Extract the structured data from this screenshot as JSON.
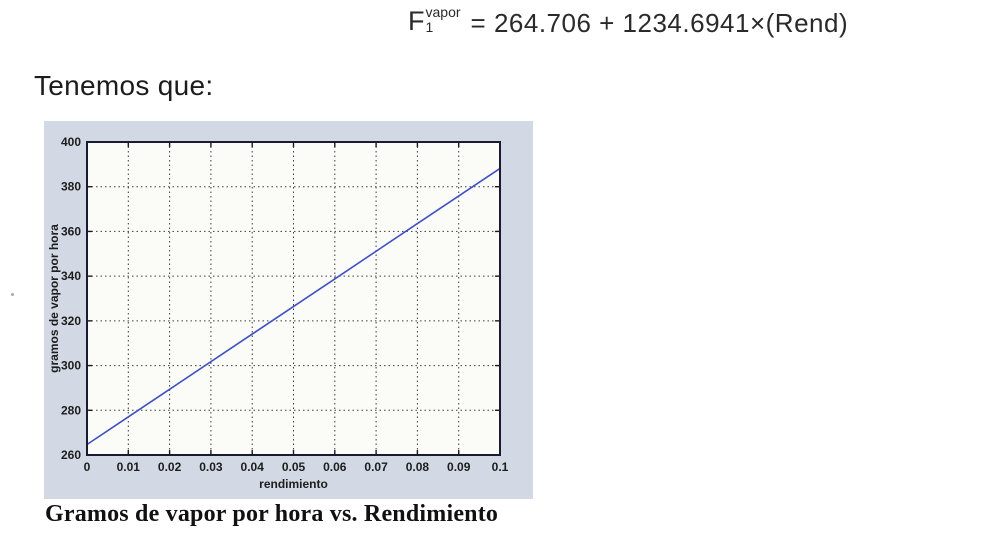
{
  "formula": {
    "base": "F",
    "sub": "1",
    "sup": "vapor",
    "rhs": "= 264.706 + 1234.6941×(Rend)"
  },
  "intro_text": "Tenemos que:",
  "figure": {
    "caption": "Gramos de vapor por hora vs. Rendimiento"
  },
  "chart_data": {
    "type": "line",
    "title": "",
    "xlabel": "rendimiento",
    "ylabel": "gramos de vapor por hora",
    "xlim": [
      0,
      0.1
    ],
    "ylim": [
      260,
      400
    ],
    "x_ticks": [
      0,
      0.01,
      0.02,
      0.03,
      0.04,
      0.05,
      0.06,
      0.07,
      0.08,
      0.09,
      0.1
    ],
    "x_tick_labels": [
      "0",
      "0.01",
      "0.02",
      "0.03",
      "0.04",
      "0.05",
      "0.06",
      "0.07",
      "0.08",
      "0.09",
      "0.1"
    ],
    "y_ticks": [
      260,
      280,
      300,
      320,
      340,
      360,
      380,
      400
    ],
    "y_tick_labels": [
      "260",
      "280",
      "300",
      "320",
      "340",
      "360",
      "380",
      "400"
    ],
    "grid": true,
    "legend_position": "none",
    "series": [
      {
        "name": "F1_vapor = 264.706 + 1234.6941*Rend",
        "color": "#3f51c4",
        "x": [
          0,
          0.02,
          0.04,
          0.06,
          0.08,
          0.1
        ],
        "y": [
          264.706,
          289.4,
          314.094,
          338.788,
          363.481,
          388.175
        ]
      }
    ],
    "colors": {
      "plot_bg": "#fbfbf8",
      "figure_bg": "#d2d9e4",
      "frame": "#1a1a30",
      "grid": "#3c3c3c",
      "text": "#1d1d1d"
    }
  }
}
